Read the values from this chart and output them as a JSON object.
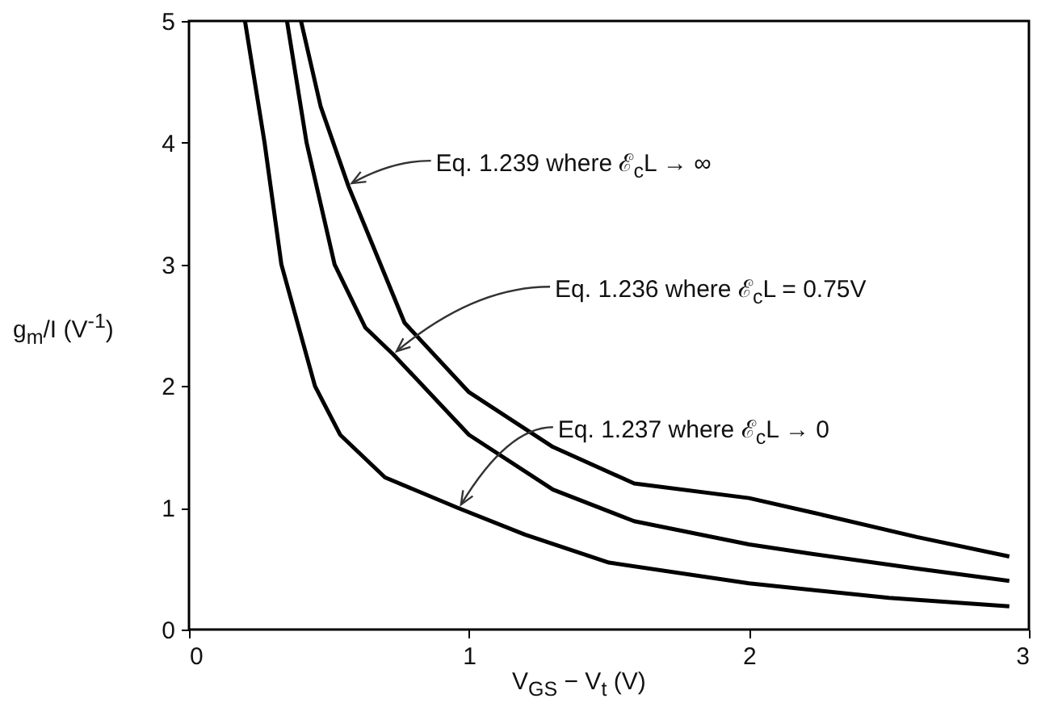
{
  "chart_data": {
    "type": "line",
    "xlabel": "V$_{GS}$ − V$_{t}$ (V)",
    "ylabel": "g$_{m}$/I (V$^{-1}$)",
    "xlim": [
      0,
      3
    ],
    "ylim": [
      0,
      5
    ],
    "xticks": [
      0,
      1,
      2,
      3
    ],
    "yticks": [
      0,
      1,
      2,
      3,
      4,
      5
    ],
    "grid": false,
    "line_style": "solid",
    "series": [
      {
        "color": "#000000",
        "x": [
          0.4,
          0.47,
          0.57,
          0.77,
          1.0,
          1.3,
          1.59,
          2.0,
          2.23,
          2.6,
          2.93
        ],
        "values": [
          5,
          4.3,
          3.64,
          2.52,
          1.95,
          1.5,
          1.2,
          1.08,
          0.96,
          0.76,
          0.6
        ]
      },
      {
        "color": "#000000",
        "x": [
          0.35,
          0.42,
          0.52,
          0.63,
          0.73,
          1.0,
          1.3,
          1.59,
          2.0,
          2.23,
          2.6,
          2.93
        ],
        "values": [
          5,
          4,
          3,
          2.48,
          2.26,
          1.6,
          1.15,
          0.89,
          0.7,
          0.62,
          0.5,
          0.4
        ]
      },
      {
        "color": "#000000",
        "x": [
          0.2,
          0.27,
          0.33,
          0.45,
          0.54,
          0.7,
          0.96,
          1.2,
          1.5,
          2.0,
          2.5,
          2.93
        ],
        "values": [
          5,
          4,
          3,
          2,
          1.6,
          1.25,
          1.0,
          0.78,
          0.55,
          0.38,
          0.26,
          0.19
        ]
      }
    ],
    "annotations": [
      {
        "text": "Eq. 1.239 where ℰ$_{c}$L → ∞",
        "x": 0.57,
        "y": 3.64
      },
      {
        "text": "Eq. 1.236 where ℰ$_{c}$L = 0.75V",
        "x": 0.73,
        "y": 2.26
      },
      {
        "text": "Eq. 1.237 where ℰ$_{c}$L → 0",
        "x": 0.96,
        "y": 1.0
      }
    ]
  }
}
